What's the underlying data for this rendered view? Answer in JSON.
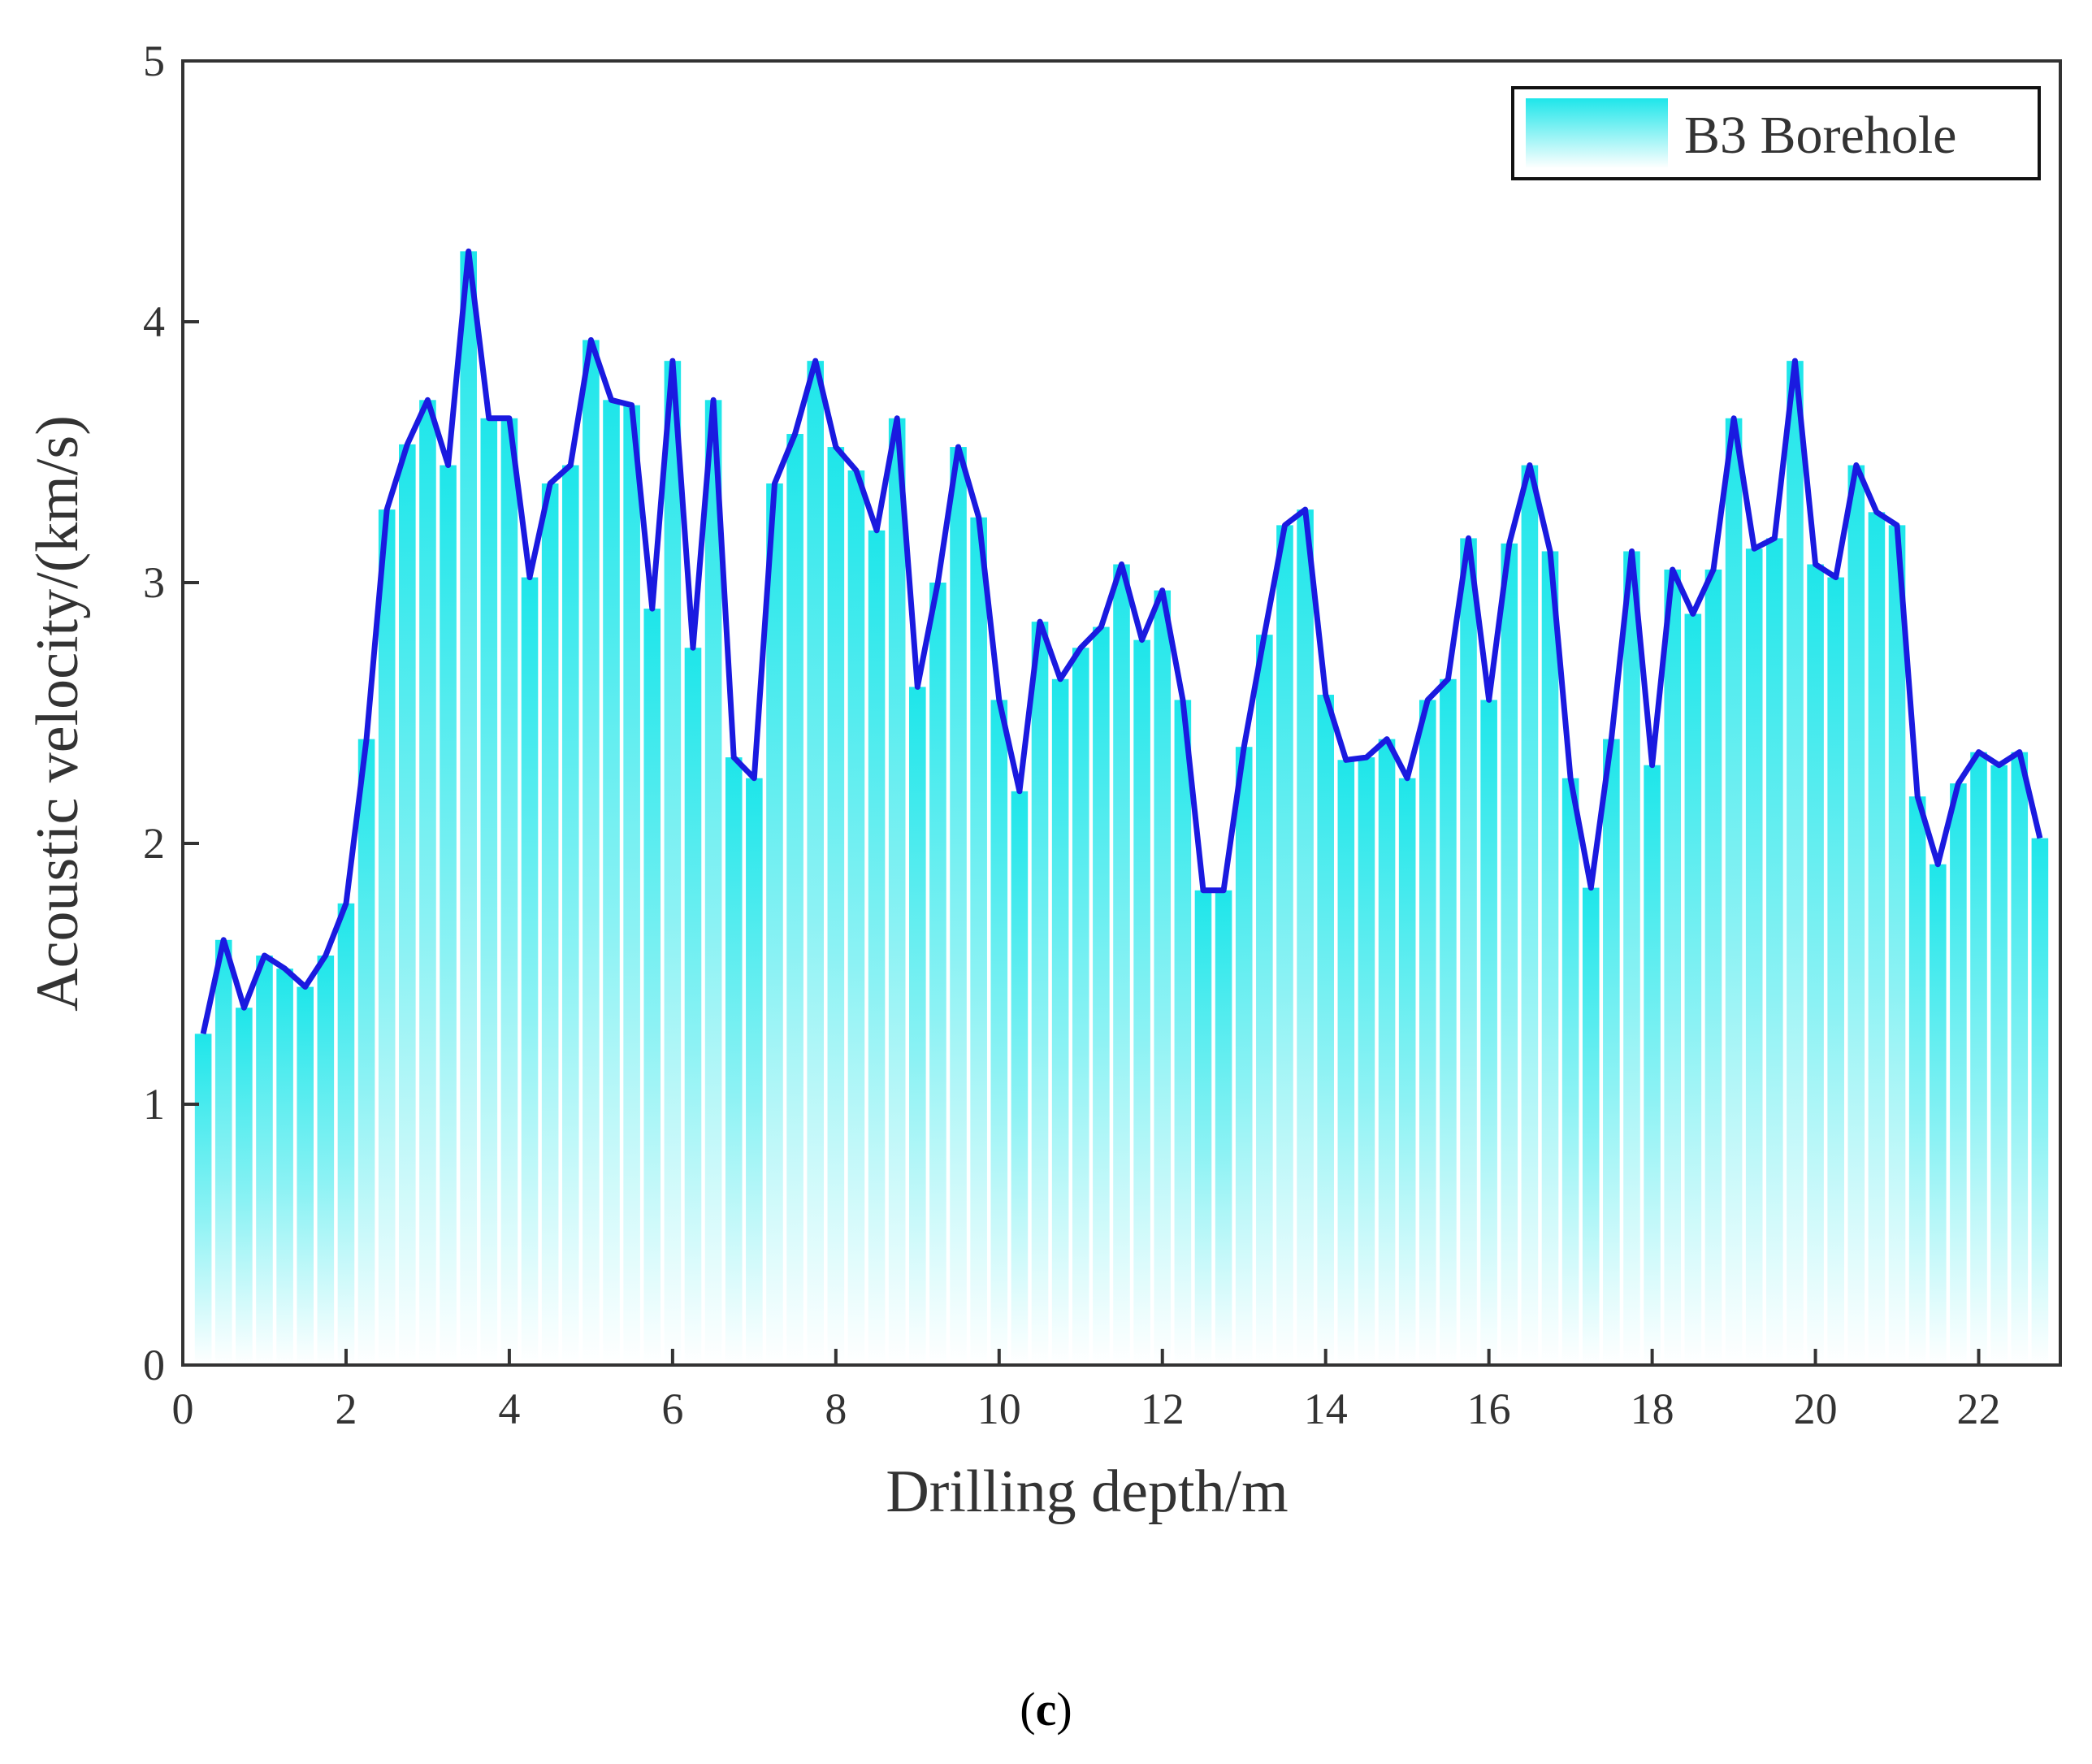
{
  "chart_data": {
    "type": "area",
    "xlabel": "Drilling depth/m",
    "ylabel": "Acoustic velocity/(km/s)",
    "xlim": [
      0,
      23
    ],
    "ylim": [
      0,
      5
    ],
    "xticks": [
      "0",
      "2",
      "4",
      "6",
      "8",
      "10",
      "12",
      "14",
      "16",
      "18",
      "20",
      "22"
    ],
    "yticks": [
      "0",
      "1",
      "2",
      "3",
      "4",
      "5"
    ],
    "grid": false,
    "legend": {
      "position": "top-right"
    },
    "series": [
      {
        "name": "B3 Borehole",
        "x": [
          0.25,
          0.5,
          0.75,
          1.0,
          1.25,
          1.5,
          1.75,
          2.0,
          2.25,
          2.5,
          2.75,
          3.0,
          3.25,
          3.5,
          3.75,
          4.0,
          4.25,
          4.5,
          4.75,
          5.0,
          5.25,
          5.5,
          5.75,
          6.0,
          6.25,
          6.5,
          6.75,
          7.0,
          7.25,
          7.5,
          7.75,
          8.0,
          8.25,
          8.5,
          8.75,
          9.0,
          9.25,
          9.5,
          9.75,
          10.0,
          10.25,
          10.5,
          10.75,
          11.0,
          11.25,
          11.5,
          11.75,
          12.0,
          12.25,
          12.5,
          12.75,
          13.0,
          13.25,
          13.5,
          13.75,
          14.0,
          14.25,
          14.5,
          14.75,
          15.0,
          15.25,
          15.5,
          15.75,
          16.0,
          16.25,
          16.5,
          16.75,
          17.0,
          17.25,
          17.5,
          17.75,
          18.0,
          18.25,
          18.5,
          18.75,
          19.0,
          19.25,
          19.5,
          19.75,
          20.0,
          20.25,
          20.5,
          20.75,
          21.0,
          21.25,
          21.5,
          21.75,
          22.0,
          22.25,
          22.5,
          22.75
        ],
        "values": [
          1.27,
          1.63,
          1.37,
          1.57,
          1.52,
          1.45,
          1.57,
          1.77,
          2.4,
          3.28,
          3.53,
          3.7,
          3.45,
          4.27,
          3.63,
          3.63,
          3.02,
          3.38,
          3.45,
          3.93,
          3.7,
          3.68,
          2.9,
          3.85,
          2.75,
          3.7,
          2.33,
          2.25,
          3.38,
          3.57,
          3.85,
          3.52,
          3.43,
          3.2,
          3.63,
          2.6,
          3.0,
          3.52,
          3.25,
          2.55,
          2.2,
          2.85,
          2.63,
          2.75,
          2.83,
          3.07,
          2.78,
          2.97,
          2.55,
          1.82,
          1.82,
          2.37,
          2.8,
          3.22,
          3.28,
          2.57,
          2.32,
          2.33,
          2.4,
          2.25,
          2.55,
          2.63,
          3.17,
          2.55,
          3.15,
          3.45,
          3.12,
          2.25,
          1.83,
          2.4,
          3.12,
          2.3,
          3.05,
          2.88,
          3.05,
          3.63,
          3.13,
          3.17,
          3.85,
          3.07,
          3.02,
          3.45,
          3.27,
          3.22,
          2.18,
          1.92,
          2.23,
          2.35,
          2.3,
          2.35,
          2.02
        ]
      }
    ]
  },
  "colors": {
    "line": "#1a1ae0",
    "fill_top": "#1ee6ea",
    "fill_bottom": "#ffffff",
    "axis": "#333333"
  },
  "caption": {
    "open": "(",
    "letter": "c",
    "close": ")"
  }
}
